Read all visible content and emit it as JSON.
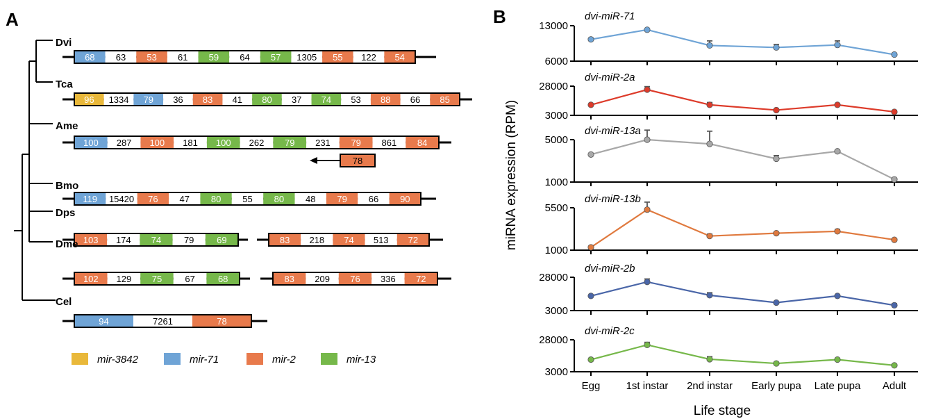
{
  "panels": {
    "a": "A",
    "b": "B"
  },
  "colors": {
    "mir-3842": "#e9b83a",
    "mir-71": "#6fa4d6",
    "mir-2": "#e87a4c",
    "mir-13": "#76b84a",
    "none": "#ffffff"
  },
  "species": [
    {
      "name": "Dvi",
      "clusters": [
        [
          [
            "mir-71",
            "68"
          ],
          [
            "none",
            "63"
          ],
          [
            "mir-2",
            "53"
          ],
          [
            "none",
            "61"
          ],
          [
            "mir-13",
            "59"
          ],
          [
            "none",
            "64"
          ],
          [
            "mir-13",
            "57"
          ],
          [
            "none",
            "1305"
          ],
          [
            "mir-2",
            "55"
          ],
          [
            "none",
            "122"
          ],
          [
            "mir-2",
            "54"
          ]
        ]
      ]
    },
    {
      "name": "Tca",
      "clusters": [
        [
          [
            "mir-3842",
            "96"
          ],
          [
            "none",
            "1334"
          ],
          [
            "mir-71",
            "79"
          ],
          [
            "none",
            "36"
          ],
          [
            "mir-2",
            "83"
          ],
          [
            "none",
            "41"
          ],
          [
            "mir-13",
            "80"
          ],
          [
            "none",
            "37"
          ],
          [
            "mir-13",
            "74"
          ],
          [
            "none",
            "53"
          ],
          [
            "mir-2",
            "88"
          ],
          [
            "none",
            "66"
          ],
          [
            "mir-2",
            "85"
          ]
        ]
      ]
    },
    {
      "name": "Ame",
      "clusters": [
        [
          [
            "mir-71",
            "100"
          ],
          [
            "none",
            "287"
          ],
          [
            "mir-2",
            "100"
          ],
          [
            "none",
            "181"
          ],
          [
            "mir-13",
            "100"
          ],
          [
            "none",
            "262"
          ],
          [
            "mir-13",
            "79"
          ],
          [
            "none",
            "231"
          ],
          [
            "mir-2",
            "79"
          ],
          [
            "none",
            "861"
          ],
          [
            "mir-2",
            "84"
          ]
        ]
      ],
      "reverse": [
        "mir-2",
        "78"
      ]
    },
    {
      "name": "Bmo",
      "clusters": [
        [
          [
            "mir-71",
            "119"
          ],
          [
            "none",
            "15420"
          ],
          [
            "mir-2",
            "76"
          ],
          [
            "none",
            "47"
          ],
          [
            "mir-13",
            "80"
          ],
          [
            "none",
            "55"
          ],
          [
            "mir-13",
            "80"
          ],
          [
            "none",
            "48"
          ],
          [
            "mir-2",
            "79"
          ],
          [
            "none",
            "66"
          ],
          [
            "mir-2",
            "90"
          ]
        ]
      ]
    },
    {
      "name": "Dps",
      "clusters": [
        [
          [
            "mir-2",
            "103"
          ],
          [
            "none",
            "174"
          ],
          [
            "mir-13",
            "74"
          ],
          [
            "none",
            "79"
          ],
          [
            "mir-13",
            "69"
          ]
        ],
        [
          [
            "mir-2",
            "83"
          ],
          [
            "none",
            "218"
          ],
          [
            "mir-2",
            "74"
          ],
          [
            "none",
            "513"
          ],
          [
            "mir-2",
            "72"
          ]
        ]
      ]
    },
    {
      "name": "Dme",
      "clusters": [
        [
          [
            "mir-2",
            "102"
          ],
          [
            "none",
            "129"
          ],
          [
            "mir-13",
            "75"
          ],
          [
            "none",
            "67"
          ],
          [
            "mir-13",
            "68"
          ]
        ],
        [
          [
            "mir-2",
            "83"
          ],
          [
            "none",
            "209"
          ],
          [
            "mir-2",
            "76"
          ],
          [
            "none",
            "336"
          ],
          [
            "mir-2",
            "72"
          ]
        ]
      ]
    },
    {
      "name": "Cel",
      "clusters": [
        [
          [
            "mir-71",
            "94"
          ],
          [
            "none",
            "7261"
          ],
          [
            "mir-2",
            "78"
          ]
        ]
      ]
    }
  ],
  "legend": [
    {
      "key": "mir-3842",
      "label": "mir-3842"
    },
    {
      "key": "mir-71",
      "label": "mir-71"
    },
    {
      "key": "mir-2",
      "label": "mir-2"
    },
    {
      "key": "mir-13",
      "label": "mir-13"
    }
  ],
  "chart_data": {
    "type": "line",
    "categories": [
      "Egg",
      "1st instar",
      "2nd instar",
      "Early pupa",
      "Late pupa",
      "Adult"
    ],
    "xlabel": "Life stage",
    "ylabel": "miRNA expression (RPM)",
    "series": [
      {
        "name": "dvi-miR-71",
        "color": "#6fa4d6",
        "ylim": [
          6000,
          13000
        ],
        "ticks": [
          "13000",
          "6000"
        ],
        "values": [
          10300,
          12200,
          9100,
          8700,
          9200,
          7300
        ],
        "errors": [
          0,
          0,
          900,
          600,
          800,
          0
        ]
      },
      {
        "name": "dvi-miR-2a",
        "color": "#dd3b2a",
        "ylim": [
          3000,
          28000
        ],
        "ticks": [
          "28000",
          "3000"
        ],
        "values": [
          12000,
          25000,
          12000,
          7500,
          12000,
          6000
        ],
        "errors": [
          0,
          2600,
          2000,
          0,
          0,
          1200
        ]
      },
      {
        "name": "dvi-miR-13a",
        "color": "#a8a8a8",
        "ylim": [
          1000,
          5000
        ],
        "ticks": [
          "5000",
          "1000"
        ],
        "values": [
          3600,
          5000,
          4600,
          3200,
          3900,
          1250
        ],
        "errors": [
          0,
          900,
          1200,
          300,
          0,
          0
        ]
      },
      {
        "name": "dvi-miR-13b",
        "color": "#e07a3f",
        "ylim": [
          1000,
          5500
        ],
        "ticks": [
          "5500",
          "1000"
        ],
        "values": [
          1300,
          5300,
          2500,
          2800,
          3000,
          2100
        ],
        "errors": [
          0,
          800,
          200,
          0,
          200,
          0
        ]
      },
      {
        "name": "dvi-miR-2b",
        "color": "#4a66a8",
        "ylim": [
          3000,
          28000
        ],
        "ticks": [
          "28000",
          "3000"
        ],
        "values": [
          14000,
          24500,
          14500,
          9000,
          14000,
          7000
        ],
        "errors": [
          0,
          2200,
          1900,
          0,
          0,
          1200
        ]
      },
      {
        "name": "dvi-miR-2c",
        "color": "#76b84a",
        "ylim": [
          3000,
          28000
        ],
        "ticks": [
          "28000",
          "3000"
        ],
        "values": [
          12500,
          24000,
          12800,
          9500,
          12500,
          8000
        ],
        "errors": [
          0,
          2000,
          2000,
          800,
          0,
          0
        ]
      }
    ]
  }
}
